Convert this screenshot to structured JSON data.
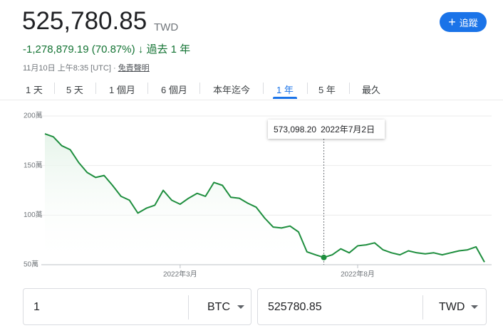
{
  "header": {
    "price": "525,780.85",
    "currency": "TWD",
    "change": "-1,278,879.19 (70.87%)",
    "period": "過去 1 年",
    "timestamp": "11月10日 上午8:35 [UTC] ·",
    "disclaimer": "免責聲明",
    "follow_button": "追蹤"
  },
  "tabs": [
    "1 天",
    "5 天",
    "1 個月",
    "6 個月",
    "本年迄今",
    "1 年",
    "5 年",
    "最久"
  ],
  "selected_tab": 5,
  "chart_data": {
    "type": "line",
    "categories": [
      null,
      null,
      null,
      null,
      null,
      null,
      null,
      null,
      null,
      null,
      null,
      null,
      null,
      null,
      null,
      null,
      "2022年3月",
      null,
      null,
      null,
      null,
      null,
      null,
      null,
      null,
      null,
      null,
      null,
      null,
      null,
      null,
      null,
      null,
      null,
      null,
      null,
      null,
      "2022年8月",
      null,
      null,
      null,
      null,
      null,
      null,
      null,
      null,
      null,
      null,
      null,
      null,
      null,
      null,
      null
    ],
    "series": [
      {
        "color": "#1e8e3e",
        "values": [
          1820000,
          1790000,
          1700000,
          1660000,
          1530000,
          1430000,
          1380000,
          1400000,
          1300000,
          1190000,
          1150000,
          1020000,
          1070000,
          1100000,
          1250000,
          1150000,
          1110000,
          1170000,
          1220000,
          1190000,
          1330000,
          1300000,
          1180000,
          1170000,
          1120000,
          1080000,
          970000,
          880000,
          870000,
          890000,
          830000,
          630000,
          600000,
          573098.2,
          600000,
          660000,
          620000,
          690000,
          700000,
          720000,
          650000,
          620000,
          600000,
          640000,
          620000,
          610000,
          620000,
          600000,
          620000,
          640000,
          650000,
          680000,
          525780.85
        ]
      }
    ],
    "ylim": [
      500000,
      2000000
    ],
    "yticks": [
      {
        "value": 500000,
        "label": "50萬"
      },
      {
        "value": 1000000,
        "label": "100萬"
      },
      {
        "value": 1500000,
        "label": "150萬"
      },
      {
        "value": 2000000,
        "label": "200萬"
      }
    ],
    "grid": true,
    "tooltip": {
      "index": 33,
      "value_label": "573,098.20",
      "date": "2022年7月2日"
    }
  },
  "converter": {
    "amount": "1",
    "from": "BTC",
    "result": "525780.85",
    "to": "TWD"
  }
}
